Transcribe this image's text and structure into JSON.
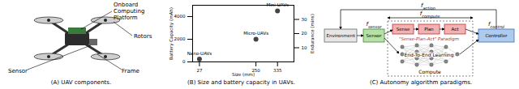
{
  "captions": [
    "(A) UAV components.",
    "(B) Size and battery capacity in UAVs.",
    "(C) Autonomy algorithm paradigms."
  ],
  "panel_a": {
    "labels": {
      "platform": "Onboard Computing Platform",
      "rotors": "Rotors",
      "sensor": "Sensor",
      "frame": "Frame"
    }
  },
  "chart_data": {
    "type": "scatter",
    "x_label": "Size (mm)",
    "y_label": "Battery Capacity (mAh)",
    "y2_label": "Endurance (mins)",
    "x": [
      27,
      250,
      335
    ],
    "values": [
      250,
      2000,
      4500
    ],
    "point_labels": [
      "Nano-UAVs",
      "Micro-UAVs",
      "Mini-UAVs"
    ],
    "color": "#444444",
    "xlim": [
      0,
      400
    ],
    "xticks": [
      27,
      250,
      335
    ],
    "ylim": [
      0,
      5000
    ],
    "yticks": [
      0,
      2000,
      4000
    ],
    "y2lim": [
      0,
      40
    ],
    "y2ticks": [
      10,
      20,
      30
    ],
    "grid": false
  },
  "panel_c": {
    "nodes": {
      "environment": "Environment",
      "sensor": "Sensor",
      "sense": "Sense",
      "plan": "Plan",
      "act": "Act",
      "paradigm": "\"Sense-Plan-Act\" Paradigm",
      "learning": "End-To-End Learning",
      "controller": "Controller",
      "compute": "Compute"
    },
    "rates": {
      "symbol": "f",
      "action": "action",
      "compute": "compute",
      "sensor": "sensor",
      "control": "control"
    }
  }
}
